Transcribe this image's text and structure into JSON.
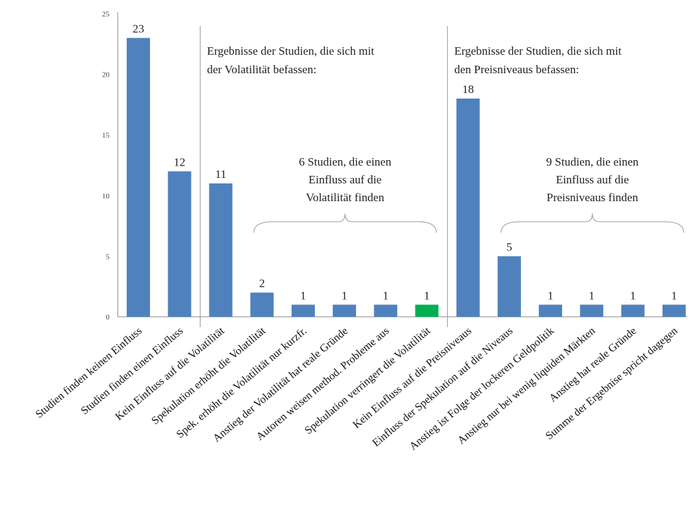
{
  "chart_data": {
    "type": "bar",
    "ylim": [
      0,
      25
    ],
    "yticks": [
      0,
      5,
      10,
      15,
      20,
      25
    ],
    "grid": false,
    "legend": "none",
    "categories": [
      "Studien finden keinen Einfluss",
      "Studien finden einen Einfluss",
      "Kein Einfluss auf die Volatilität",
      "Spekulation erhöht die Volatilität",
      "Spek. erhöht die Volatilität nur kurzfr.",
      "Anstieg der Volatilität hat reale Gründe",
      "Autoren weisen method. Probleme aus",
      "Spekulation verringert die Volatilität",
      "Kein Einfluss auf die Preisniveaus",
      "Einfluss der Spekulation auf die Niveaus",
      "Anstieg ist Folge der lockeren Geldpolitik",
      "Anstieg nur bei wenig liquiden Märkten",
      "Anstieg hat reale Gründe",
      "Summe der Ergebnise spricht dagegen"
    ],
    "values": [
      23,
      12,
      11,
      2,
      1,
      1,
      1,
      1,
      18,
      5,
      1,
      1,
      1,
      1
    ],
    "colors": [
      "#4f81bd",
      "#4f81bd",
      "#4f81bd",
      "#4f81bd",
      "#4f81bd",
      "#4f81bd",
      "#4f81bd",
      "#00b050",
      "#4f81bd",
      "#4f81bd",
      "#4f81bd",
      "#4f81bd",
      "#4f81bd",
      "#4f81bd"
    ],
    "section_notes": [
      {
        "lines": [
          "Ergebnisse der Studien, die sich mit",
          "der Volatilität befassen:"
        ]
      },
      {
        "lines": [
          "Ergebnisse der Studien, die sich mit",
          "den Preisniveaus befassen:"
        ]
      }
    ],
    "brace_notes": [
      {
        "lines": [
          "6 Studien, die einen",
          "Einfluss auf die",
          "Volatilität finden"
        ],
        "from_index": 3,
        "to_index": 7
      },
      {
        "lines": [
          "9 Studien, die einen",
          "Einfluss auf die",
          "Preisniveaus finden"
        ],
        "from_index": 9,
        "to_index": 13
      }
    ]
  }
}
